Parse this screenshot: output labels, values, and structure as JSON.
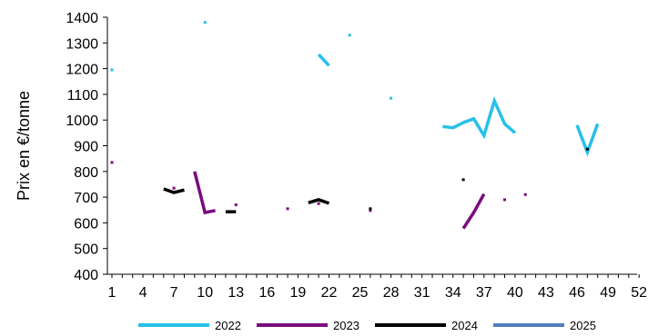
{
  "chart_data": {
    "type": "line",
    "title": "",
    "xlabel": "",
    "ylabel": "Prix en €/tonne",
    "xlim": [
      1,
      52
    ],
    "ylim": [
      400,
      1400
    ],
    "x_ticks": [
      1,
      4,
      7,
      10,
      13,
      16,
      19,
      22,
      25,
      28,
      31,
      34,
      37,
      40,
      43,
      46,
      49,
      52
    ],
    "y_ticks": [
      400,
      500,
      600,
      700,
      800,
      900,
      1000,
      1100,
      1200,
      1300,
      1400
    ],
    "grid": false,
    "legend_position": "bottom",
    "series": [
      {
        "name": "2022",
        "color": "#27C0E8",
        "segments": [
          [
            [
              1,
              1195
            ]
          ],
          [
            [
              10,
              1380
            ]
          ],
          [
            [
              21,
              1255
            ],
            [
              22,
              1212
            ]
          ],
          [
            [
              24,
              1330
            ]
          ],
          [
            [
              28,
              1085
            ]
          ],
          [
            [
              33,
              975
            ],
            [
              34,
              970
            ],
            [
              35,
              990
            ],
            [
              36,
              1005
            ],
            [
              37,
              940
            ],
            [
              38,
              1075
            ],
            [
              39,
              985
            ],
            [
              40,
              950
            ]
          ],
          [
            [
              46,
              980
            ],
            [
              47,
              875
            ],
            [
              48,
              985
            ]
          ]
        ]
      },
      {
        "name": "2023",
        "color": "#7B0A7E",
        "segments": [
          [
            [
              1,
              835
            ]
          ],
          [
            [
              7,
              735
            ]
          ],
          [
            [
              9,
              800
            ],
            [
              10,
              640
            ],
            [
              11,
              648
            ]
          ],
          [
            [
              13,
              670
            ]
          ],
          [
            [
              18,
              655
            ]
          ],
          [
            [
              21,
              675
            ]
          ],
          [
            [
              26,
              648
            ]
          ],
          [
            [
              35,
              578
            ],
            [
              36,
              640
            ],
            [
              37,
              712
            ]
          ],
          [
            [
              39,
              690
            ]
          ],
          [
            [
              41,
              710
            ]
          ]
        ]
      },
      {
        "name": "2024",
        "color": "#000000",
        "segments": [
          [
            [
              6,
              732
            ],
            [
              7,
              718
            ],
            [
              8,
              728
            ]
          ],
          [
            [
              12,
              643
            ],
            [
              13,
              643
            ]
          ],
          [
            [
              20,
              678
            ],
            [
              21,
              690
            ],
            [
              22,
              676
            ]
          ],
          [
            [
              26,
              655
            ]
          ],
          [
            [
              35,
              768
            ]
          ],
          [
            [
              47,
              887
            ]
          ]
        ]
      },
      {
        "name": "2025",
        "color": "#4F7FBA",
        "segments": []
      }
    ]
  }
}
